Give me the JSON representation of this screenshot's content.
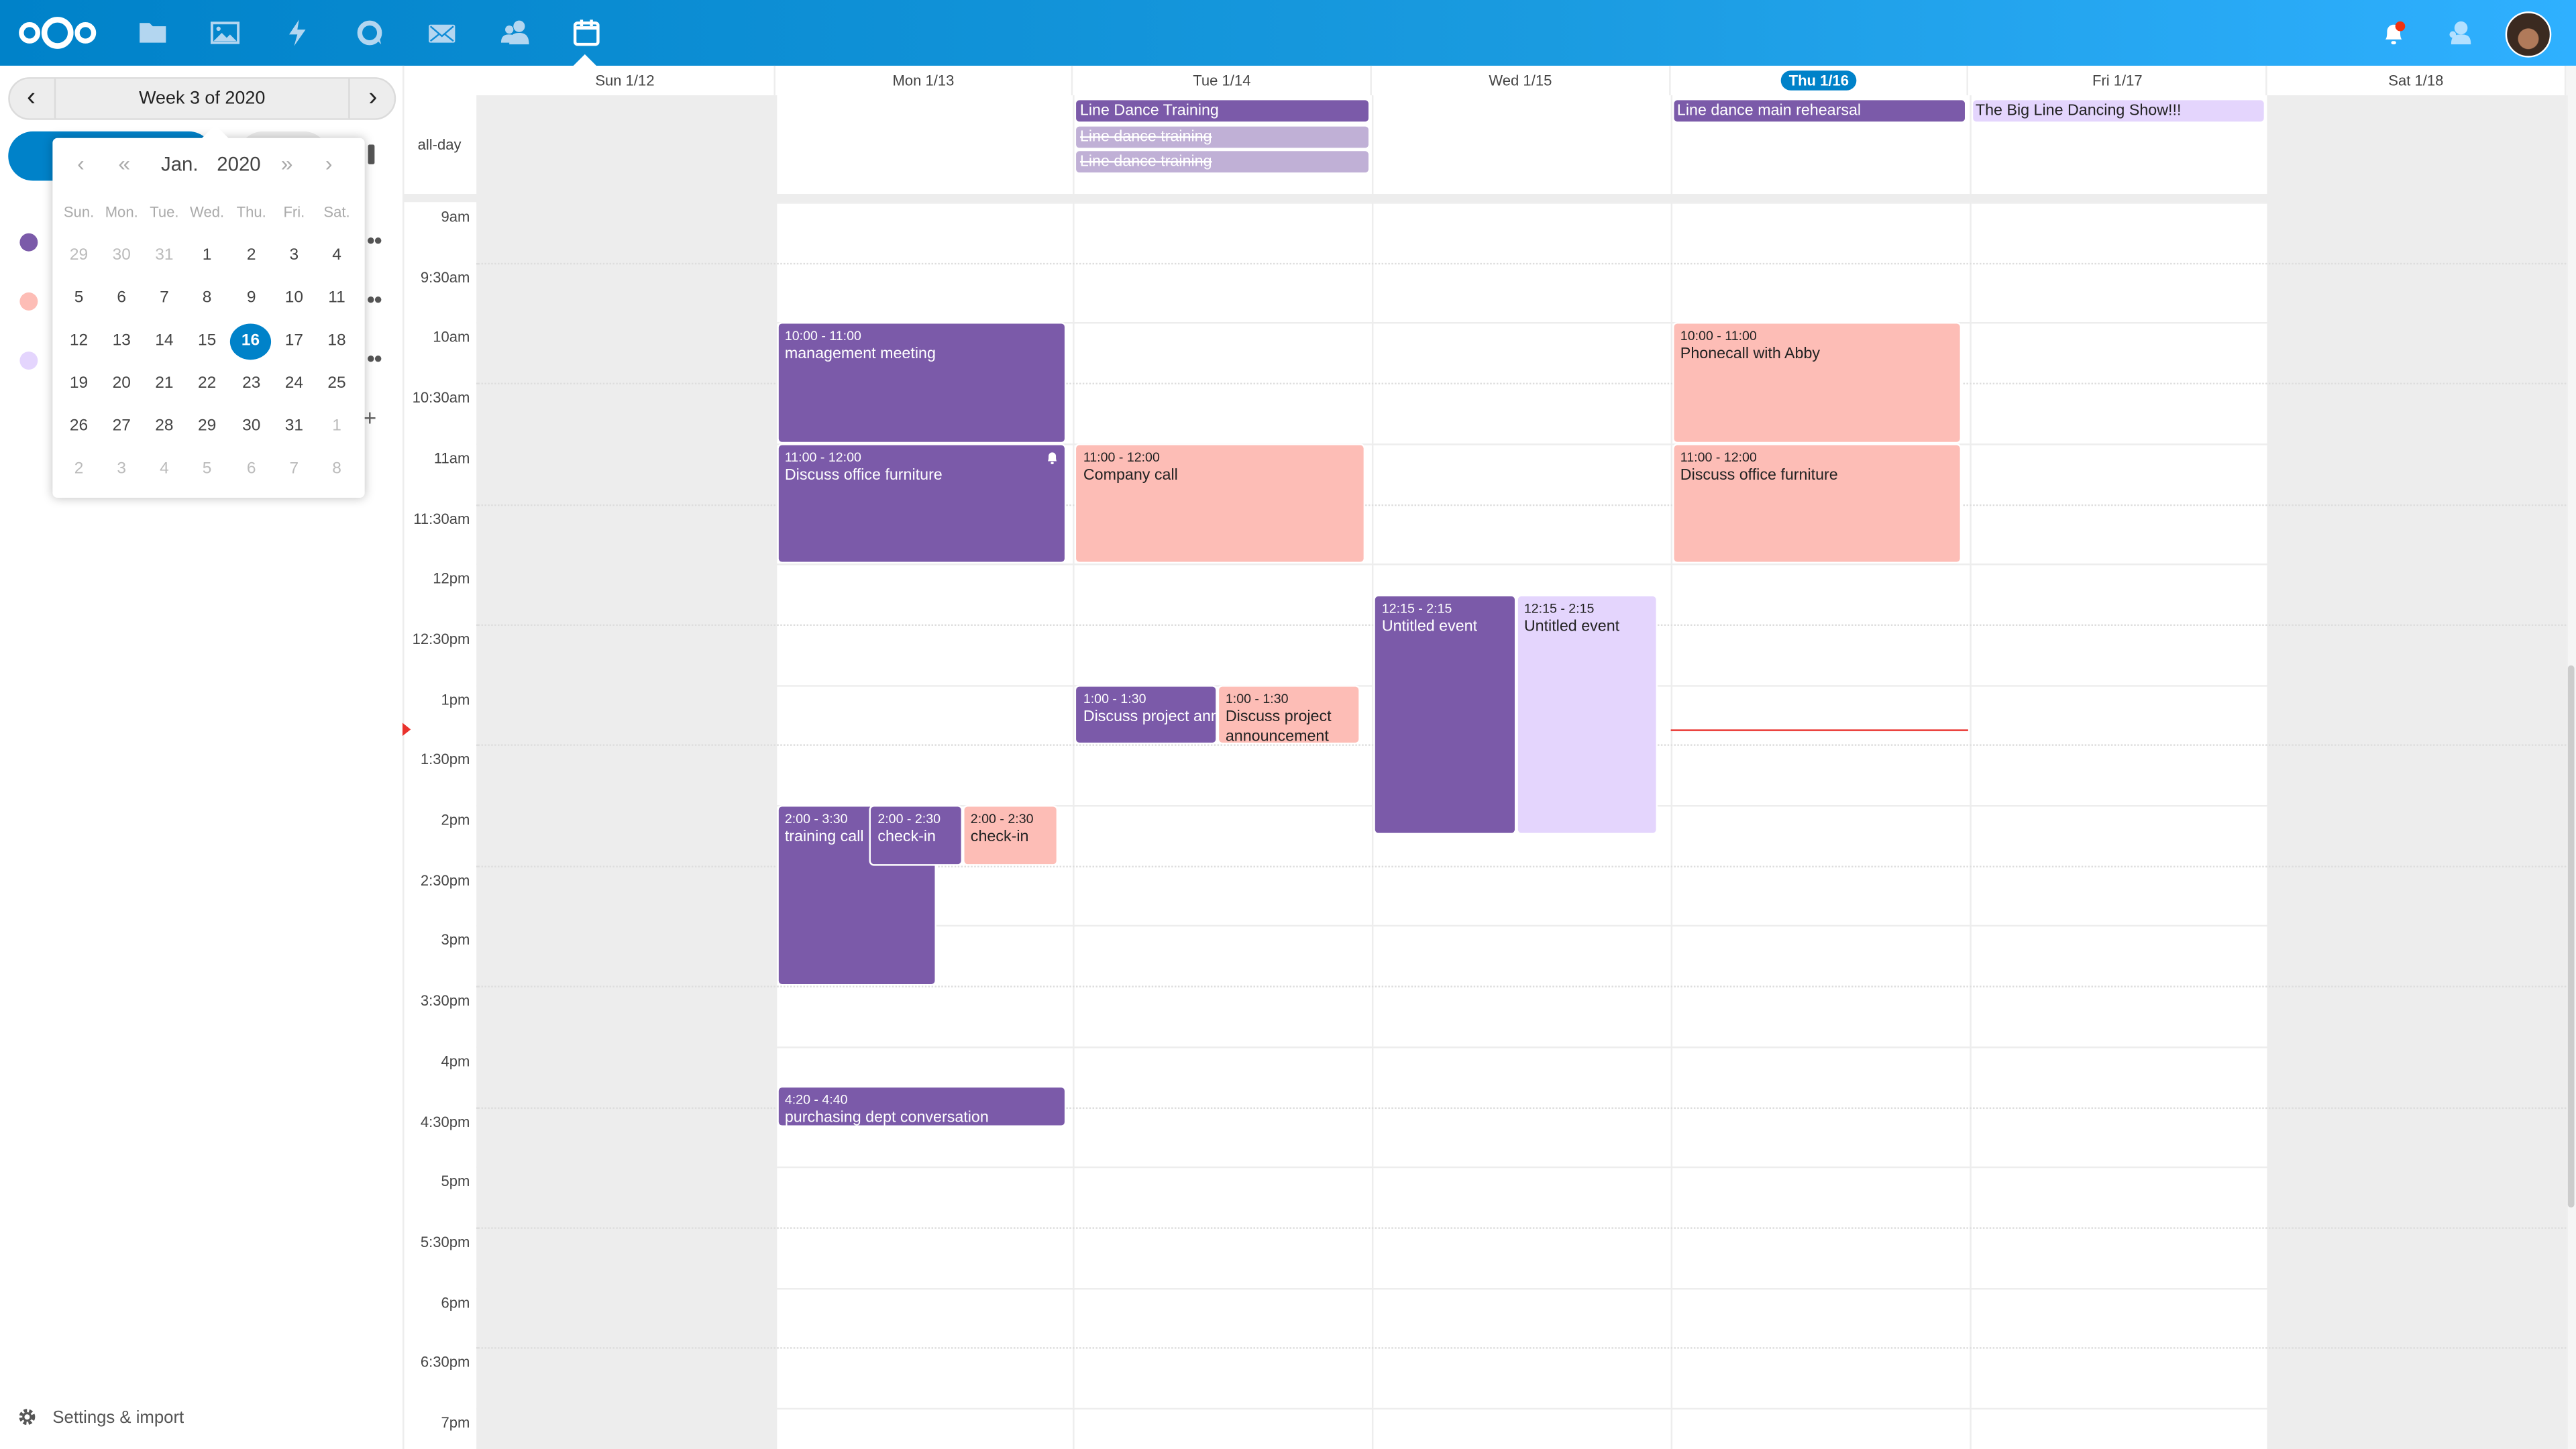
{
  "colors": {
    "brand": "#0082c9",
    "calendar_personal": "#7b5aa9",
    "calendar_work": "#fdbdb6",
    "calendar_other": "#e4d5fd",
    "now_indicator": "#e9322d"
  },
  "topbar": {
    "apps": [
      "nextcloud-logo",
      "files-icon",
      "photos-icon",
      "activity-icon",
      "talk-icon",
      "mail-icon",
      "contacts-icon",
      "calendar-icon"
    ],
    "right": [
      "notifications-icon",
      "contacts-menu-icon",
      "user-avatar"
    ]
  },
  "sidebar": {
    "week_label": "Week 3 of 2020",
    "settings_label": "Settings & import",
    "datepicker": {
      "month": "Jan.",
      "year": "2020",
      "weekdays": [
        "Sun.",
        "Mon.",
        "Tue.",
        "Wed.",
        "Thu.",
        "Fri.",
        "Sat."
      ],
      "weeks": [
        [
          {
            "d": "29",
            "m": true
          },
          {
            "d": "30",
            "m": true
          },
          {
            "d": "31",
            "m": true
          },
          {
            "d": "1"
          },
          {
            "d": "2"
          },
          {
            "d": "3"
          },
          {
            "d": "4"
          }
        ],
        [
          {
            "d": "5"
          },
          {
            "d": "6"
          },
          {
            "d": "7"
          },
          {
            "d": "8"
          },
          {
            "d": "9"
          },
          {
            "d": "10"
          },
          {
            "d": "11"
          }
        ],
        [
          {
            "d": "12"
          },
          {
            "d": "13"
          },
          {
            "d": "14"
          },
          {
            "d": "15"
          },
          {
            "d": "16",
            "sel": true
          },
          {
            "d": "17"
          },
          {
            "d": "18"
          }
        ],
        [
          {
            "d": "19"
          },
          {
            "d": "20"
          },
          {
            "d": "21"
          },
          {
            "d": "22"
          },
          {
            "d": "23"
          },
          {
            "d": "24"
          },
          {
            "d": "25"
          }
        ],
        [
          {
            "d": "26"
          },
          {
            "d": "27"
          },
          {
            "d": "28"
          },
          {
            "d": "29"
          },
          {
            "d": "30"
          },
          {
            "d": "31"
          },
          {
            "d": "1",
            "m": true
          }
        ],
        [
          {
            "d": "2",
            "m": true
          },
          {
            "d": "3",
            "m": true
          },
          {
            "d": "4",
            "m": true
          },
          {
            "d": "5",
            "m": true
          },
          {
            "d": "6",
            "m": true
          },
          {
            "d": "7",
            "m": true
          },
          {
            "d": "8",
            "m": true
          }
        ]
      ]
    }
  },
  "calendar": {
    "days": [
      "Sun 1/12",
      "Mon 1/13",
      "Tue 1/14",
      "Wed 1/15",
      "Thu 1/16",
      "Fri 1/17",
      "Sat 1/18"
    ],
    "today_index": 4,
    "allday_label": "all-day",
    "allday_events": [
      {
        "title": "Line Dance Training",
        "day": 2
      },
      {
        "title": "Line dance training",
        "day": 2,
        "cancelled": true
      },
      {
        "title": "Line dance training",
        "day": 2,
        "cancelled": true
      },
      {
        "title": "Line dance main rehearsal",
        "day": 4
      },
      {
        "title": "The Big Line Dancing Show!!!",
        "day": 5
      }
    ],
    "time_labels": [
      "9am",
      "9:30am",
      "10am",
      "10:30am",
      "11am",
      "11:30am",
      "12pm",
      "12:30pm",
      "1pm",
      "1:30pm",
      "2pm",
      "2:30pm",
      "3pm",
      "3:30pm",
      "4pm",
      "4:30pm",
      "5pm",
      "5:30pm",
      "6pm",
      "6:30pm",
      "7pm"
    ],
    "now_time": "1:22pm",
    "events": [
      {
        "time": "10:00 - 11:00",
        "title": "management meeting",
        "day": 1,
        "start": "10:00",
        "end": "11:00"
      },
      {
        "time": "11:00 - 12:00",
        "title": "Discuss office furniture",
        "day": 1,
        "start": "11:00",
        "end": "12:00",
        "reminder": true
      },
      {
        "time": "2:00 - 3:30",
        "title": "training call",
        "day": 1,
        "start": "14:00",
        "end": "15:30"
      },
      {
        "time": "2:00 - 2:30",
        "title": "check-in",
        "day": 1,
        "start": "14:00",
        "end": "14:30"
      },
      {
        "time": "2:00 - 2:30",
        "title": "check-in",
        "day": 1,
        "start": "14:00",
        "end": "14:30"
      },
      {
        "time": "4:20 - 4:40",
        "title": "purchasing dept conversation",
        "day": 1,
        "start": "16:20",
        "end": "16:40"
      },
      {
        "time": "11:00 - 12:00",
        "title": "Company call",
        "day": 2,
        "start": "11:00",
        "end": "12:00"
      },
      {
        "time": "1:00 - 1:30",
        "title": "Discuss project announcement",
        "day": 2,
        "start": "13:00",
        "end": "13:30"
      },
      {
        "time": "1:00 - 1:30",
        "title": "Discuss project announcement",
        "day": 2,
        "start": "13:00",
        "end": "13:30"
      },
      {
        "time": "12:15 - 2:15",
        "title": "Untitled event",
        "day": 3,
        "start": "12:15",
        "end": "14:15"
      },
      {
        "time": "12:15 - 2:15",
        "title": "Untitled event",
        "day": 3,
        "start": "12:15",
        "end": "14:15"
      },
      {
        "time": "10:00 - 11:00",
        "title": "Phonecall with Abby",
        "day": 4,
        "start": "10:00",
        "end": "11:00"
      },
      {
        "time": "11:00 - 12:00",
        "title": "Discuss office furniture",
        "day": 4,
        "start": "11:00",
        "end": "12:00"
      }
    ]
  }
}
